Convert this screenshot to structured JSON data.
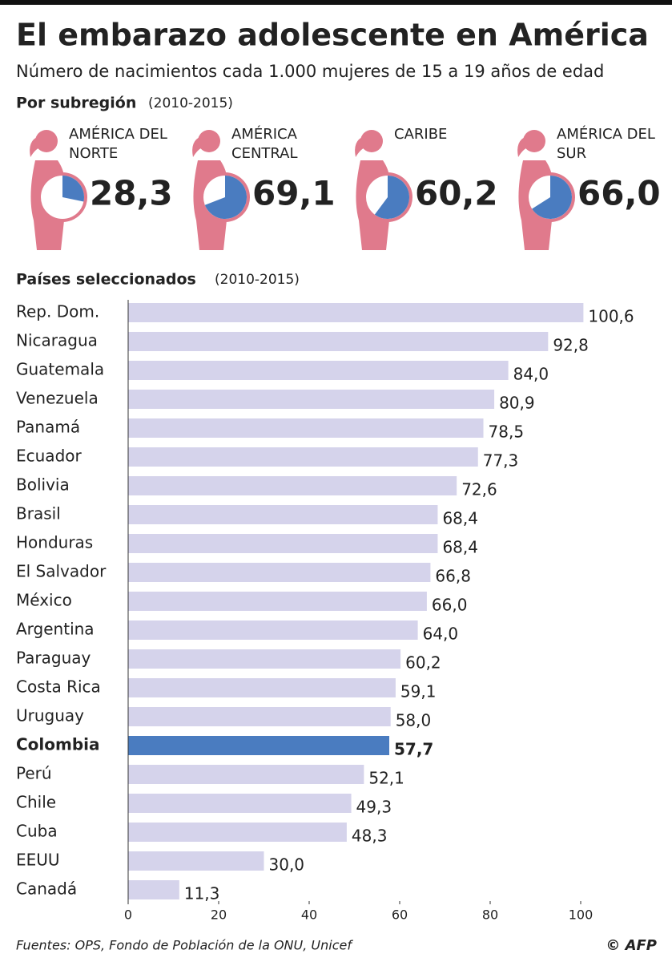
{
  "title": "El embarazo adolescente en América",
  "subtitle": "Número de nacimientos cada 1.000 mujeres de 15 a 19 años de edad",
  "source": "Fuentes: OPS, Fondo de Población de la ONU, Unicef",
  "credit": "© AFP",
  "chart_data": [
    {
      "type": "pictogram",
      "title": "Por subregión",
      "subtitle": "(2010-2015)",
      "categories": [
        "AMÉRICA DEL NORTE",
        "AMÉRICA CENTRAL",
        "CARIBE",
        "AMÉRICA DEL SUR"
      ],
      "values": [
        28.3,
        69.1,
        60.2,
        66.0
      ],
      "value_labels": [
        "28,3",
        "69,1",
        "60,2",
        "66,0"
      ],
      "ylim": [
        0,
        100
      ],
      "color": "#4a7cc0",
      "figure_color": "#e07a8c"
    },
    {
      "type": "bar",
      "orientation": "horizontal",
      "title": "Países seleccionados",
      "subtitle": "(2010-2015)",
      "categories": [
        "Rep. Dom.",
        "Nicaragua",
        "Guatemala",
        "Venezuela",
        "Panamá",
        "Ecuador",
        "Bolivia",
        "Brasil",
        "Honduras",
        "El Salvador",
        "México",
        "Argentina",
        "Paraguay",
        "Costa Rica",
        "Uruguay",
        "Colombia",
        "Perú",
        "Chile",
        "Cuba",
        "EEUU",
        "Canadá"
      ],
      "values": [
        100.6,
        92.8,
        84.0,
        80.9,
        78.5,
        77.3,
        72.6,
        68.4,
        68.4,
        66.8,
        66.0,
        64.0,
        60.2,
        59.1,
        58.0,
        57.7,
        52.1,
        49.3,
        48.3,
        30.0,
        11.3
      ],
      "value_labels": [
        "100,6",
        "92,8",
        "84,0",
        "80,9",
        "78,5",
        "77,3",
        "72,6",
        "68,4",
        "68,4",
        "66,8",
        "66,0",
        "64,0",
        "60,2",
        "59,1",
        "58,0",
        "57,7",
        "52,1",
        "49,3",
        "48,3",
        "30,0",
        "11,3"
      ],
      "xlim": [
        0,
        104
      ],
      "xticks": [
        0,
        20,
        40,
        60,
        80,
        100
      ],
      "color": "#d5d3eb",
      "highlight": "Colombia",
      "highlight_color": "#4a7cc0"
    }
  ]
}
